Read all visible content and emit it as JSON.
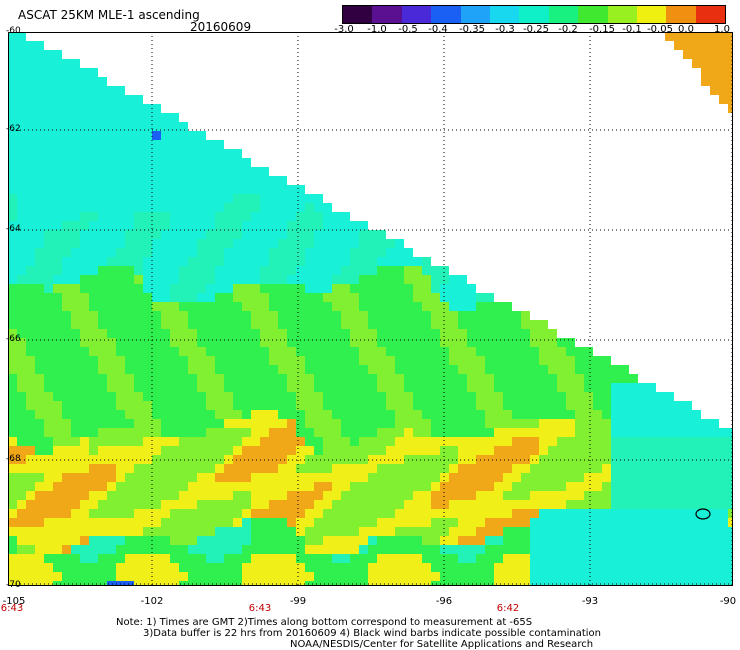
{
  "header": {
    "title": "ASCAT 25KM MLE-1 ascending",
    "date": "20160609"
  },
  "colorbar": {
    "labels": [
      "-3.0",
      "-1.0",
      "-0.5",
      "-0.4",
      "-0.35",
      "-0.3",
      "-0.25",
      "-0.2",
      "-0.15",
      "-0.1",
      "-0.05",
      "0.0",
      "1.0"
    ],
    "colors": [
      "#300040",
      "#5a1090",
      "#4a2ad8",
      "#1a60f5",
      "#1ea3f8",
      "#18d8f0",
      "#10f0c8",
      "#18f080",
      "#40e830",
      "#98f020",
      "#f0f010",
      "#f09010",
      "#e83010"
    ]
  },
  "axes": {
    "lat_labels": [
      "-60",
      "-62",
      "-64",
      "-66",
      "-68",
      "-70"
    ],
    "lon_labels": [
      "-105",
      "-102",
      "-99",
      "-96",
      "-93",
      "-90"
    ],
    "time_labels": [
      "6:43",
      "6:43",
      "6:42"
    ]
  },
  "map": {
    "legend": "Black wind barbs indicate possible contamination",
    "palette": {
      "cyan": "#18f0d8",
      "aqua": "#22f2b8",
      "green": "#30f050",
      "lime": "#80f030",
      "yellow": "#f0f018",
      "orange": "#f0a818",
      "blue": "#1a60f5"
    }
  },
  "notes": {
    "line1": "Note: 1) Times are GMT 2)Times along bottom correspond to measurement at -65S",
    "line2": "3)Data buffer is 22 hrs from 20160609 4) Black wind barbs indicate possible contamination",
    "line3": "NOAA/NESDIS/Center for Satellite Applications and Research"
  }
}
